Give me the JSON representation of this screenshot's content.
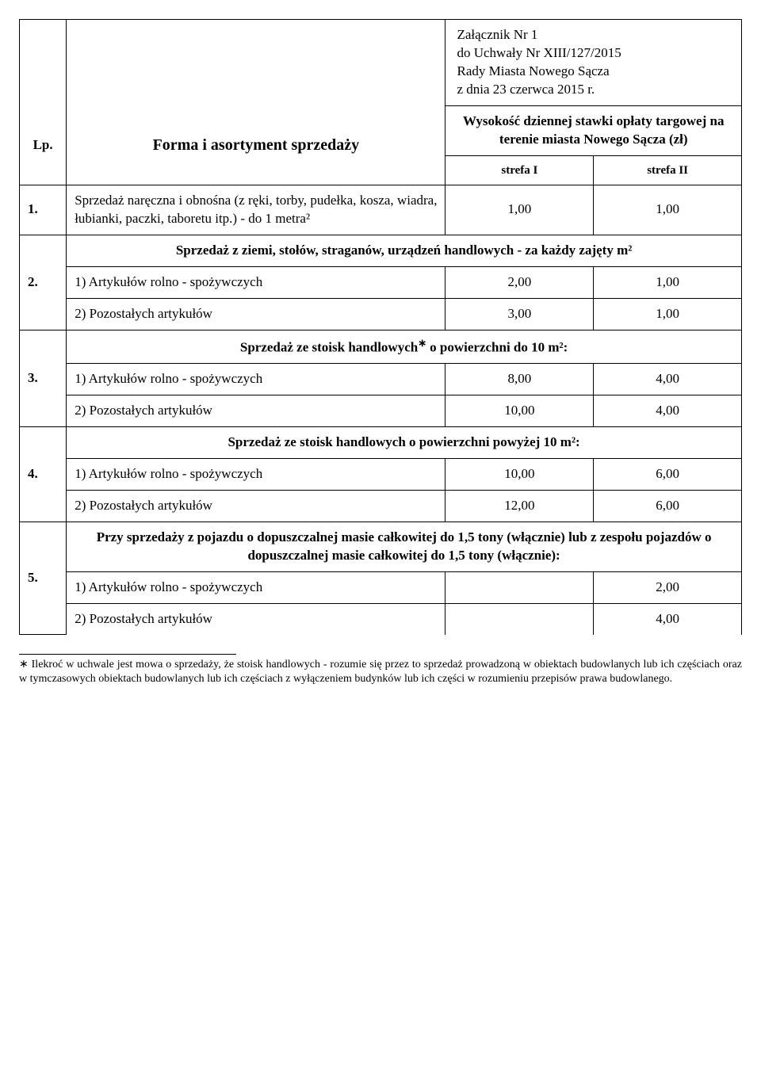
{
  "attachment": {
    "line1": "Załącznik Nr 1",
    "line2": "do Uchwały Nr XIII/127/2015",
    "line3": "Rady Miasta Nowego Sącza",
    "line4": "z dnia 23 czerwca 2015 r."
  },
  "header": {
    "lp": "Lp.",
    "forma": "Forma i asortyment sprzedaży",
    "rate_title": "Wysokość dziennej stawki opłaty targowej na terenie miasta Nowego Sącza (zł)",
    "strefa1": "strefa I",
    "strefa2": "strefa II"
  },
  "rows": {
    "r1": {
      "lp": "1.",
      "desc": "Sprzedaż naręczna i obnośna (z ręki, torby, pudełka, kosza, wiadra, łubianki, paczki, taboretu itp.) - do 1 metra²",
      "v1": "1,00",
      "v2": "1,00"
    },
    "r2": {
      "lp": "2.",
      "heading": "Sprzedaż z ziemi, stołów, straganów, urządzeń handlowych - za każdy zajęty m²",
      "sub1_label": "1)   Artykułów rolno - spożywczych",
      "sub1_v1": "2,00",
      "sub1_v2": "1,00",
      "sub2_label": "2)   Pozostałych artykułów",
      "sub2_v1": "3,00",
      "sub2_v2": "1,00"
    },
    "r3": {
      "lp": "3.",
      "heading_pre": "Sprzedaż ze stoisk handlowych",
      "heading_post": " o powierzchni do 10 m²:",
      "sub1_label": "1)    Artykułów rolno - spożywczych",
      "sub1_v1": "8,00",
      "sub1_v2": "4,00",
      "sub2_label": "2)    Pozostałych artykułów",
      "sub2_v1": "10,00",
      "sub2_v2": "4,00"
    },
    "r4": {
      "lp": "4.",
      "heading": "Sprzedaż ze stoisk handlowych o powierzchni powyżej 10 m²:",
      "sub1_label": "1)    Artykułów rolno - spożywczych",
      "sub1_v1": "10,00",
      "sub1_v2": "6,00",
      "sub2_label": "2)    Pozostałych artykułów",
      "sub2_v1": "12,00",
      "sub2_v2": "6,00"
    },
    "r5": {
      "lp": "5.",
      "heading": "Przy sprzedaży z pojazdu o dopuszczalnej masie całkowitej do 1,5 tony (włącznie) lub z zespołu pojazdów o dopuszczalnej masie całkowitej do 1,5 tony (włącznie):",
      "sub1_label": "1)     Artykułów rolno - spożywczych",
      "sub1_v2": "2,00",
      "sub2_label": "2)     Pozostałych artykułów",
      "sub2_v2": "4,00"
    }
  },
  "footnote": {
    "marker": "∗",
    "text": " Ilekroć w uchwale jest mowa o sprzedaży, że stoisk handlowych - rozumie się przez to sprzedaż prowadzoną w obiektach budowlanych lub ich częściach oraz w tymczasowych obiektach budowlanych lub ich częściach z wyłączeniem budynków lub ich części w rozumieniu przepisów prawa budowlanego."
  }
}
